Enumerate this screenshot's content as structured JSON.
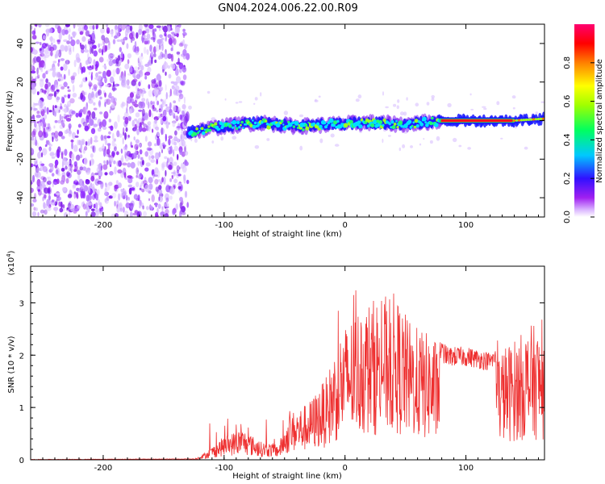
{
  "title": "GN04.2024.006.22.00.R09",
  "chart_data": [
    {
      "type": "heatmap",
      "xlabel": "Height of straight line (km)",
      "ylabel": "Frequency (Hz)",
      "xlim": [
        -260,
        165
      ],
      "ylim": [
        -50,
        50
      ],
      "xticks": [
        -200,
        -100,
        0,
        100
      ],
      "yticks": [
        -40,
        -20,
        0,
        20,
        40
      ],
      "colorbar": {
        "label": "Normalized spectral amplitude",
        "range": [
          0,
          1
        ],
        "ticks": [
          "0.0",
          "0.2",
          "0.4",
          "0.6",
          "0.8"
        ],
        "colormap": [
          "#ffffff",
          "#a020f0",
          "#3010ff",
          "#00c8ff",
          "#00ff60",
          "#a0ff00",
          "#ffff00",
          "#ff8000",
          "#ff0000",
          "#ff0070"
        ]
      },
      "signal_track": [
        {
          "x": -130,
          "y": -6
        },
        {
          "x": -100,
          "y": -3
        },
        {
          "x": -70,
          "y": -1
        },
        {
          "x": -40,
          "y": -3
        },
        {
          "x": -10,
          "y": -2
        },
        {
          "x": 20,
          "y": -1
        },
        {
          "x": 50,
          "y": -2
        },
        {
          "x": 80,
          "y": 0
        },
        {
          "x": 140,
          "y": 0
        },
        {
          "x": 165,
          "y": 1
        }
      ]
    },
    {
      "type": "line",
      "xlabel": "Height of straight line (km)",
      "ylabel": "SNR (10 * v/v)",
      "ylabel_multiplier": "(x10",
      "ylabel_multiplier_exp": "4",
      "ylabel_multiplier_close": ")",
      "xlim": [
        -260,
        165
      ],
      "ylim": [
        0,
        3.7
      ],
      "xticks": [
        -200,
        -100,
        0,
        100
      ],
      "yticks": [
        0,
        1,
        2,
        3
      ],
      "color": "#ee3030",
      "envelope": [
        {
          "x": -260,
          "y": 0.0
        },
        {
          "x": -125,
          "y": 0.01
        },
        {
          "x": -115,
          "y": 0.15
        },
        {
          "x": -100,
          "y": 0.45
        },
        {
          "x": -85,
          "y": 0.6
        },
        {
          "x": -70,
          "y": 0.35
        },
        {
          "x": -55,
          "y": 0.3
        },
        {
          "x": -45,
          "y": 0.9
        },
        {
          "x": -30,
          "y": 1.1
        },
        {
          "x": -15,
          "y": 1.6
        },
        {
          "x": -5,
          "y": 2.4
        },
        {
          "x": 10,
          "y": 2.9
        },
        {
          "x": 25,
          "y": 3.1
        },
        {
          "x": 40,
          "y": 3.2
        },
        {
          "x": 55,
          "y": 2.6
        },
        {
          "x": 70,
          "y": 2.4
        },
        {
          "x": 85,
          "y": 2.1
        },
        {
          "x": 100,
          "y": 2.1
        },
        {
          "x": 120,
          "y": 2.0
        },
        {
          "x": 140,
          "y": 2.3
        },
        {
          "x": 155,
          "y": 2.6
        },
        {
          "x": 165,
          "y": 2.4
        }
      ]
    }
  ]
}
